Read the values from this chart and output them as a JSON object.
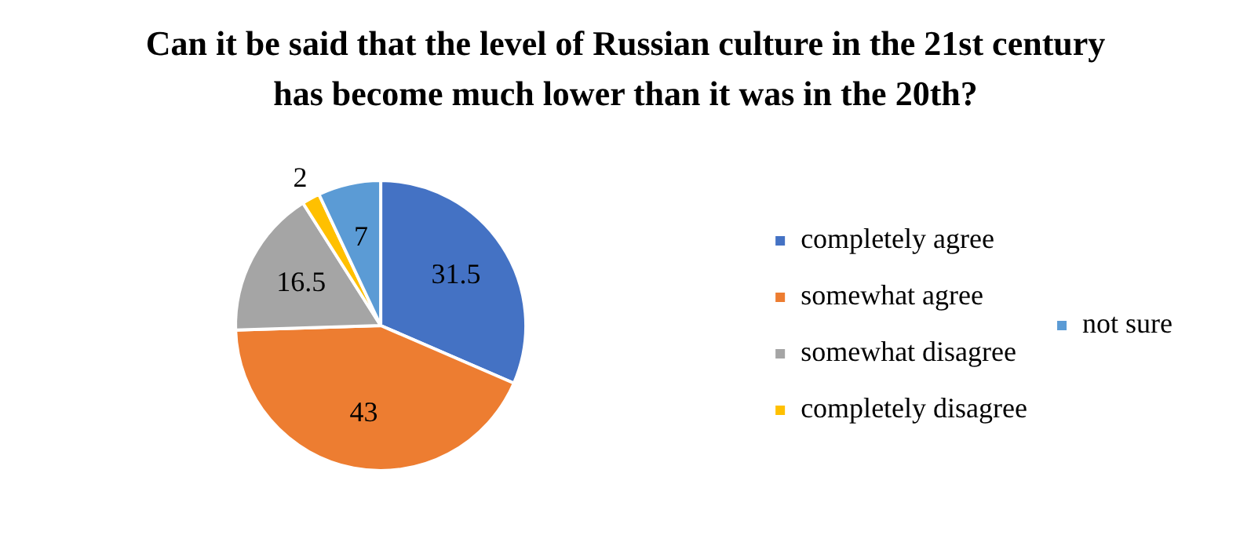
{
  "chart_data": {
    "type": "pie",
    "title": "Can it be said that the level of Russian culture in the 21st century has become much lower than it was in the 20th?",
    "categories": [
      "completely agree",
      "somewhat agree",
      "somewhat disagree",
      "completely disagree",
      "not sure"
    ],
    "values": [
      31.5,
      43,
      16.5,
      2,
      7
    ],
    "colors": [
      "#4472c4",
      "#ed7d31",
      "#a5a5a5",
      "#ffc000",
      "#5b9bd5"
    ],
    "data_labels": true,
    "legend": "right"
  }
}
